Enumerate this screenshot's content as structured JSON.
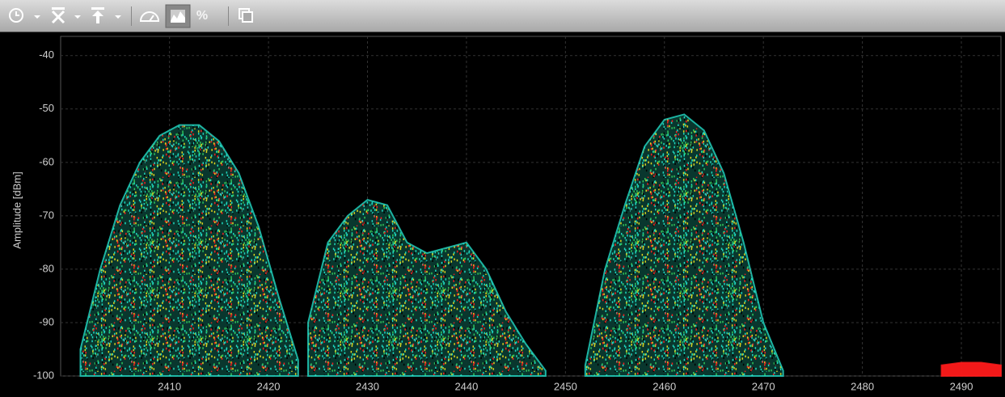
{
  "toolbar": {
    "percent_button": "%"
  },
  "chart_data": {
    "type": "density",
    "ylabel": "Amplitude [dBm]",
    "xlim": [
      2399,
      2494
    ],
    "xticks": [
      2410,
      2420,
      2430,
      2440,
      2450,
      2460,
      2470,
      2480,
      2490
    ],
    "ylim": [
      -100,
      -36.4
    ],
    "yticks": [
      -40,
      -50,
      -60,
      -70,
      -80,
      -90,
      -100
    ],
    "grid": true,
    "series": [
      {
        "color": "#22d8c4",
        "x": [
          2401,
          2403,
          2405,
          2407,
          2409,
          2411,
          2413,
          2415,
          2417,
          2419,
          2421,
          2423
        ],
        "values": [
          -95,
          -80,
          -68,
          -60,
          -55,
          -53,
          -53,
          -56,
          -62,
          -72,
          -85,
          -97
        ]
      },
      {
        "color": "#22d8c4",
        "x": [
          2424,
          2426,
          2428,
          2430,
          2432,
          2434,
          2436,
          2438,
          2440,
          2442,
          2444,
          2446,
          2448
        ],
        "values": [
          -90,
          -75,
          -70,
          -67,
          -68,
          -75,
          -77,
          -76,
          -75,
          -80,
          -88,
          -94,
          -99
        ]
      },
      {
        "color": "#22d8c4",
        "x": [
          2452,
          2454,
          2456,
          2458,
          2460,
          2462,
          2464,
          2466,
          2468,
          2470,
          2472
        ],
        "values": [
          -98,
          -80,
          -68,
          -57,
          -52,
          -51,
          -54,
          -62,
          -75,
          -90,
          -99
        ]
      },
      {
        "color": "#ff1a1a",
        "x": [
          2488,
          2490,
          2492,
          2494
        ],
        "values": [
          -98,
          -97.5,
          -97.5,
          -98
        ]
      }
    ]
  }
}
